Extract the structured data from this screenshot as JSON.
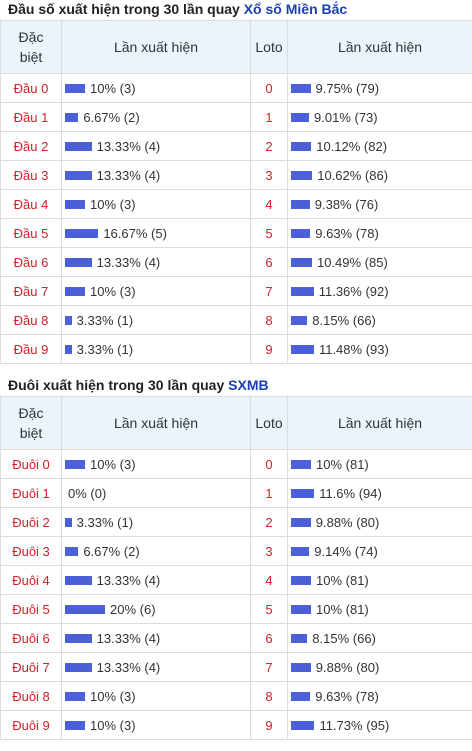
{
  "sections": [
    {
      "title_prefix": "Đầu số xuất hiện trong 30 lần quay",
      "title_link": "Xổ số Miền Bắc",
      "headers": {
        "col1_line1": "Đặc",
        "col1_line2": "biệt",
        "col2": "Lần xuất hiện",
        "col3": "Loto",
        "col4": "Lần xuất hiện"
      },
      "rows": [
        {
          "label": "Đầu 0",
          "pct": 10,
          "count_text": "10% (3)",
          "loto": "0",
          "loto_pct": 9.75,
          "loto_text": "9.75% (79)"
        },
        {
          "label": "Đầu 1",
          "pct": 6.67,
          "count_text": "6.67% (2)",
          "loto": "1",
          "loto_pct": 9.01,
          "loto_text": "9.01% (73)"
        },
        {
          "label": "Đầu 2",
          "pct": 13.33,
          "count_text": "13.33% (4)",
          "loto": "2",
          "loto_pct": 10.12,
          "loto_text": "10.12% (82)"
        },
        {
          "label": "Đầu 3",
          "pct": 13.33,
          "count_text": "13.33% (4)",
          "loto": "3",
          "loto_pct": 10.62,
          "loto_text": "10.62% (86)"
        },
        {
          "label": "Đầu 4",
          "pct": 10,
          "count_text": "10% (3)",
          "loto": "4",
          "loto_pct": 9.38,
          "loto_text": "9.38% (76)"
        },
        {
          "label": "Đầu 5",
          "pct": 16.67,
          "count_text": "16.67% (5)",
          "loto": "5",
          "loto_pct": 9.63,
          "loto_text": "9.63% (78)"
        },
        {
          "label": "Đầu 6",
          "pct": 13.33,
          "count_text": "13.33% (4)",
          "loto": "6",
          "loto_pct": 10.49,
          "loto_text": "10.49% (85)"
        },
        {
          "label": "Đầu 7",
          "pct": 10,
          "count_text": "10% (3)",
          "loto": "7",
          "loto_pct": 11.36,
          "loto_text": "11.36% (92)"
        },
        {
          "label": "Đầu 8",
          "pct": 3.33,
          "count_text": "3.33% (1)",
          "loto": "8",
          "loto_pct": 8.15,
          "loto_text": "8.15% (66)"
        },
        {
          "label": "Đầu 9",
          "pct": 3.33,
          "count_text": "3.33% (1)",
          "loto": "9",
          "loto_pct": 11.48,
          "loto_text": "11.48% (93)"
        }
      ]
    },
    {
      "title_prefix": "Đuôi xuất hiện trong 30 lần quay",
      "title_link": "SXMB",
      "headers": {
        "col1_line1": "Đặc",
        "col1_line2": "biệt",
        "col2": "Lần xuất hiện",
        "col3": "Loto",
        "col4": "Lần xuất hiện"
      },
      "rows": [
        {
          "label": "Đuôi 0",
          "pct": 10,
          "count_text": "10% (3)",
          "loto": "0",
          "loto_pct": 10,
          "loto_text": "10% (81)"
        },
        {
          "label": "Đuôi 1",
          "pct": 0,
          "count_text": "0% (0)",
          "loto": "1",
          "loto_pct": 11.6,
          "loto_text": "11.6% (94)"
        },
        {
          "label": "Đuôi 2",
          "pct": 3.33,
          "count_text": "3.33% (1)",
          "loto": "2",
          "loto_pct": 9.88,
          "loto_text": "9.88% (80)"
        },
        {
          "label": "Đuôi 3",
          "pct": 6.67,
          "count_text": "6.67% (2)",
          "loto": "3",
          "loto_pct": 9.14,
          "loto_text": "9.14% (74)"
        },
        {
          "label": "Đuôi 4",
          "pct": 13.33,
          "count_text": "13.33% (4)",
          "loto": "4",
          "loto_pct": 10,
          "loto_text": "10% (81)"
        },
        {
          "label": "Đuôi 5",
          "pct": 20,
          "count_text": "20% (6)",
          "loto": "5",
          "loto_pct": 10,
          "loto_text": "10% (81)"
        },
        {
          "label": "Đuôi 6",
          "pct": 13.33,
          "count_text": "13.33% (4)",
          "loto": "6",
          "loto_pct": 8.15,
          "loto_text": "8.15% (66)"
        },
        {
          "label": "Đuôi 7",
          "pct": 13.33,
          "count_text": "13.33% (4)",
          "loto": "7",
          "loto_pct": 9.88,
          "loto_text": "9.88% (80)"
        },
        {
          "label": "Đuôi 8",
          "pct": 10,
          "count_text": "10% (3)",
          "loto": "8",
          "loto_pct": 9.63,
          "loto_text": "9.63% (78)"
        },
        {
          "label": "Đuôi 9",
          "pct": 10,
          "count_text": "10% (3)",
          "loto": "9",
          "loto_pct": 11.73,
          "loto_text": "11.73% (95)"
        }
      ]
    }
  ],
  "colors": {
    "label": "#d0202a",
    "bar": "#4b5fd6",
    "header_bg": "#eaf4fd",
    "link": "#1a3fb0"
  }
}
